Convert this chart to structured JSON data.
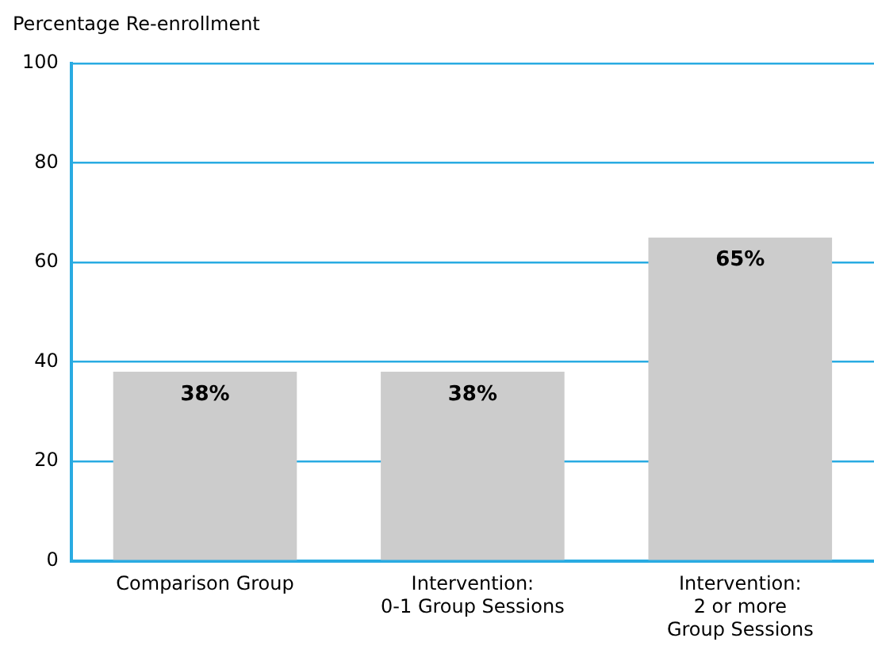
{
  "chart_data": {
    "type": "bar",
    "ylabel": "Percentage Re-enrollment",
    "categories": [
      "Comparison Group",
      "Intervention:\n0-1 Group Sessions",
      "Intervention:\n2 or more\nGroup Sessions"
    ],
    "values": [
      38,
      38,
      65
    ],
    "color": "#cccccc",
    "value_labels": [
      "38%",
      "38%",
      "65%"
    ],
    "ylim": [
      0,
      100
    ],
    "yticks": [
      0,
      20,
      40,
      60,
      80,
      100
    ],
    "grid": "y"
  }
}
